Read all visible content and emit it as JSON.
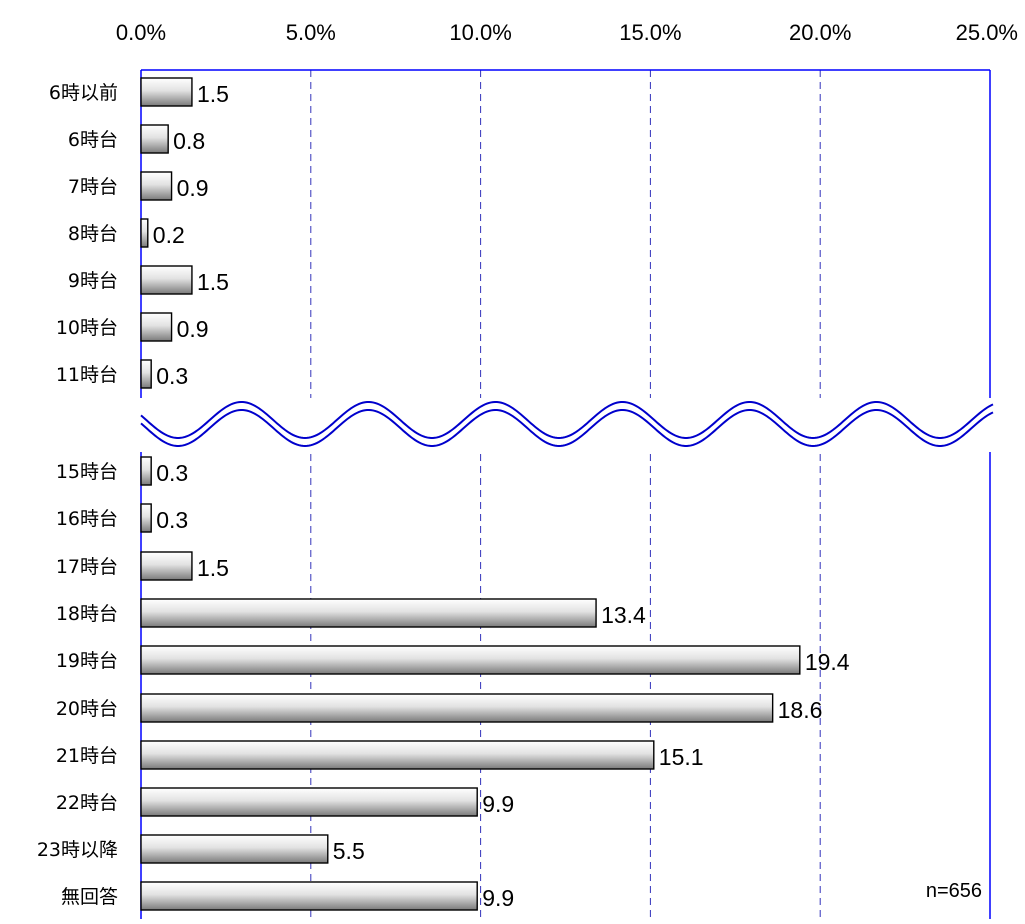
{
  "chart_data": {
    "type": "bar",
    "orientation": "horizontal",
    "title": "",
    "xlabel": "",
    "ylabel": "",
    "xlim": [
      0,
      25
    ],
    "x_ticks": [
      "0.0%",
      "5.0%",
      "10.0%",
      "15.0%",
      "20.0%",
      "25.0%"
    ],
    "x_tick_values": [
      0,
      5,
      10,
      15,
      20,
      25
    ],
    "grid": "vertical dashed",
    "axis_break": "between 11時台 and 15時台",
    "sample_note": "n=656",
    "categories": [
      "6時以前",
      "6時台",
      "7時台",
      "8時台",
      "9時台",
      "10時台",
      "11時台",
      "15時台",
      "16時台",
      "17時台",
      "18時台",
      "19時台",
      "20時台",
      "21時台",
      "22時台",
      "23時以降",
      "無回答"
    ],
    "values": [
      1.5,
      0.8,
      0.9,
      0.2,
      1.5,
      0.9,
      0.3,
      0.3,
      0.3,
      1.5,
      13.4,
      19.4,
      18.6,
      15.1,
      9.9,
      5.5,
      9.9
    ],
    "value_labels": [
      "1.5",
      "0.8",
      "0.9",
      "0.2",
      "1.5",
      "0.9",
      "0.3",
      "0.3",
      "0.3",
      "1.5",
      "13.4",
      "19.4",
      "18.6",
      "15.1",
      "9.9",
      "5.5",
      "9.9"
    ],
    "colors": {
      "bar_light": "#ffffff",
      "bar_dark": "#7a7a7a",
      "bar_stroke": "#000000",
      "axis": "#0000ff",
      "grid": "#3333bb",
      "break_line": "#0000cc"
    }
  }
}
